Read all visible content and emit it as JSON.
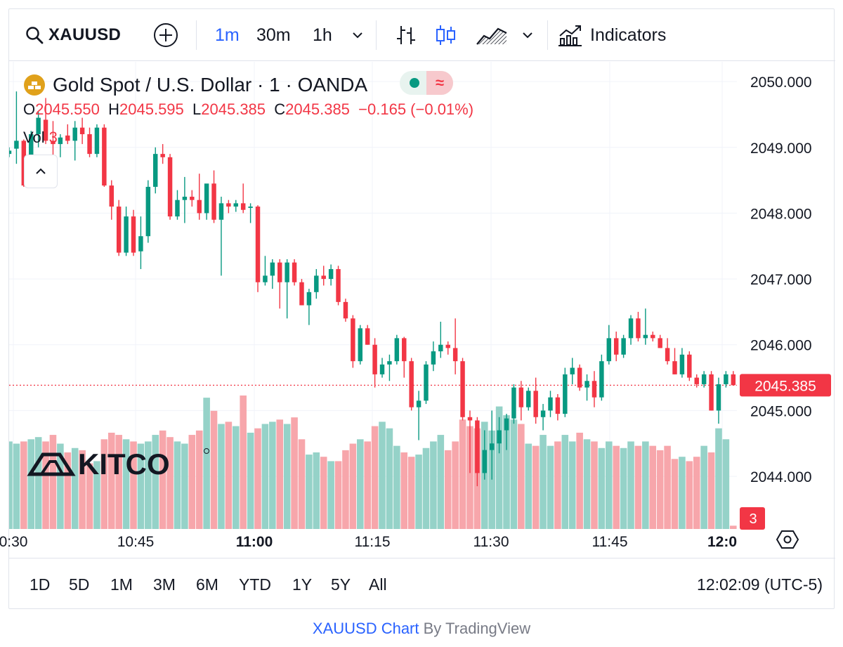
{
  "toolbar": {
    "symbol": "XAUUSD",
    "timeframes": [
      "1m",
      "30m",
      "1h"
    ],
    "active_timeframe": "1m",
    "indicators_label": "Indicators",
    "icons": [
      "search-icon",
      "add-symbol-icon",
      "chevron-down-icon",
      "bar-chart-icon",
      "candle-chart-icon",
      "area-chart-icon",
      "indicators-icon"
    ]
  },
  "legend": {
    "title": "Gold Spot / U.S. Dollar · 1 · OANDA",
    "o_label": "O",
    "o_value": "2045.550",
    "h_label": "H",
    "h_value": "2045.595",
    "l_label": "L",
    "l_value": "2045.385",
    "c_label": "C",
    "c_value": "2045.385",
    "change": "−0.165 (−0.01%)",
    "vol_label": "Vol",
    "vol_value": "3",
    "status_market": "≈"
  },
  "watermark": "KITCO",
  "chart_data": {
    "type": "candlestick",
    "symbol": "XAUUSD",
    "timeframe": "1m",
    "y_axis": {
      "ticks": [
        "2050.000",
        "2049.000",
        "2048.000",
        "2047.000",
        "2046.000",
        "2045.000",
        "2044.000"
      ],
      "ylim": [
        2043.2,
        2050.3
      ]
    },
    "x_axis": {
      "ticks": [
        {
          "label": "0:30",
          "bold": false
        },
        {
          "label": "10:45",
          "bold": false
        },
        {
          "label": "11:00",
          "bold": true
        },
        {
          "label": "11:15",
          "bold": false
        },
        {
          "label": "11:30",
          "bold": false
        },
        {
          "label": "11:45",
          "bold": false
        },
        {
          "label": "12:0",
          "bold": true
        }
      ]
    },
    "last_price": "2045.385",
    "last_volume": "3",
    "colors": {
      "up": "#089981",
      "down": "#f23645",
      "vol_up": "#95d2c8",
      "vol_down": "#f7a6ab",
      "grid": "#f0f3fa"
    },
    "grid": true,
    "candles": [
      {
        "o": 2048.9,
        "h": 2049.0,
        "l": 2048.85,
        "c": 2048.95,
        "v": 80
      },
      {
        "o": 2048.98,
        "h": 2049.85,
        "l": 2048.75,
        "c": 2049.1,
        "v": 78
      },
      {
        "o": 2049.1,
        "h": 2049.12,
        "l": 2048.4,
        "c": 2048.42,
        "v": 80
      },
      {
        "o": 2048.42,
        "h": 2049.25,
        "l": 2048.4,
        "c": 2049.2,
        "v": 82
      },
      {
        "o": 2049.2,
        "h": 2049.55,
        "l": 2049.0,
        "c": 2049.45,
        "v": 84
      },
      {
        "o": 2049.42,
        "h": 2049.75,
        "l": 2049.05,
        "c": 2049.1,
        "v": 80
      },
      {
        "o": 2049.1,
        "h": 2049.4,
        "l": 2048.7,
        "c": 2049.05,
        "v": 86
      },
      {
        "o": 2049.05,
        "h": 2049.2,
        "l": 2048.85,
        "c": 2049.15,
        "v": 78
      },
      {
        "o": 2049.18,
        "h": 2049.35,
        "l": 2049.05,
        "c": 2049.1,
        "v": 70
      },
      {
        "o": 2049.1,
        "h": 2049.4,
        "l": 2048.8,
        "c": 2049.3,
        "v": 74
      },
      {
        "o": 2049.3,
        "h": 2049.45,
        "l": 2049.05,
        "c": 2049.2,
        "v": 72
      },
      {
        "o": 2049.2,
        "h": 2049.3,
        "l": 2048.85,
        "c": 2048.9,
        "v": 60
      },
      {
        "o": 2048.9,
        "h": 2049.35,
        "l": 2048.85,
        "c": 2049.3,
        "v": 62
      },
      {
        "o": 2049.3,
        "h": 2049.35,
        "l": 2048.4,
        "c": 2048.42,
        "v": 82
      },
      {
        "o": 2048.42,
        "h": 2048.5,
        "l": 2047.9,
        "c": 2048.1,
        "v": 88
      },
      {
        "o": 2048.1,
        "h": 2048.2,
        "l": 2047.35,
        "c": 2047.4,
        "v": 86
      },
      {
        "o": 2047.4,
        "h": 2048.1,
        "l": 2047.35,
        "c": 2047.95,
        "v": 82
      },
      {
        "o": 2047.95,
        "h": 2048.05,
        "l": 2047.35,
        "c": 2047.4,
        "v": 80
      },
      {
        "o": 2047.42,
        "h": 2047.95,
        "l": 2047.15,
        "c": 2047.65,
        "v": 78
      },
      {
        "o": 2047.65,
        "h": 2048.5,
        "l": 2047.55,
        "c": 2048.4,
        "v": 80
      },
      {
        "o": 2048.4,
        "h": 2049.0,
        "l": 2048.3,
        "c": 2048.9,
        "v": 86
      },
      {
        "o": 2048.9,
        "h": 2049.05,
        "l": 2048.75,
        "c": 2048.85,
        "v": 90
      },
      {
        "o": 2048.85,
        "h": 2048.9,
        "l": 2047.9,
        "c": 2047.95,
        "v": 84
      },
      {
        "o": 2047.95,
        "h": 2048.35,
        "l": 2047.9,
        "c": 2048.2,
        "v": 80
      },
      {
        "o": 2048.2,
        "h": 2048.55,
        "l": 2047.85,
        "c": 2048.25,
        "v": 78
      },
      {
        "o": 2048.25,
        "h": 2048.35,
        "l": 2048.1,
        "c": 2048.2,
        "v": 86
      },
      {
        "o": 2048.2,
        "h": 2048.6,
        "l": 2047.9,
        "c": 2048.0,
        "v": 90
      },
      {
        "o": 2048.0,
        "h": 2048.4,
        "l": 2047.9,
        "c": 2048.45,
        "v": 120
      },
      {
        "o": 2048.45,
        "h": 2048.65,
        "l": 2047.85,
        "c": 2047.9,
        "v": 108
      },
      {
        "o": 2047.9,
        "h": 2048.25,
        "l": 2047.05,
        "c": 2048.15,
        "v": 96
      },
      {
        "o": 2048.15,
        "h": 2048.2,
        "l": 2048.0,
        "c": 2048.1,
        "v": 98
      },
      {
        "o": 2048.1,
        "h": 2048.2,
        "l": 2048.02,
        "c": 2048.15,
        "v": 94
      },
      {
        "o": 2048.15,
        "h": 2048.45,
        "l": 2048.0,
        "c": 2048.05,
        "v": 122
      },
      {
        "o": 2048.08,
        "h": 2048.15,
        "l": 2047.85,
        "c": 2048.1,
        "v": 88
      },
      {
        "o": 2048.1,
        "h": 2048.12,
        "l": 2046.8,
        "c": 2046.95,
        "v": 92
      },
      {
        "o": 2046.95,
        "h": 2047.35,
        "l": 2046.9,
        "c": 2047.05,
        "v": 96
      },
      {
        "o": 2047.05,
        "h": 2047.3,
        "l": 2046.85,
        "c": 2047.25,
        "v": 98
      },
      {
        "o": 2047.25,
        "h": 2047.3,
        "l": 2046.55,
        "c": 2046.95,
        "v": 100
      },
      {
        "o": 2046.95,
        "h": 2047.3,
        "l": 2046.4,
        "c": 2047.25,
        "v": 96
      },
      {
        "o": 2047.25,
        "h": 2047.3,
        "l": 2046.9,
        "c": 2046.95,
        "v": 102
      },
      {
        "o": 2046.95,
        "h": 2047.0,
        "l": 2046.6,
        "c": 2046.6,
        "v": 82
      },
      {
        "o": 2046.6,
        "h": 2046.85,
        "l": 2046.3,
        "c": 2046.8,
        "v": 68
      },
      {
        "o": 2046.8,
        "h": 2047.15,
        "l": 2046.7,
        "c": 2047.05,
        "v": 70
      },
      {
        "o": 2047.05,
        "h": 2047.2,
        "l": 2046.9,
        "c": 2047.0,
        "v": 66
      },
      {
        "o": 2047.0,
        "h": 2047.22,
        "l": 2046.9,
        "c": 2047.15,
        "v": 62
      },
      {
        "o": 2047.15,
        "h": 2047.2,
        "l": 2046.6,
        "c": 2046.65,
        "v": 62
      },
      {
        "o": 2046.65,
        "h": 2046.7,
        "l": 2046.35,
        "c": 2046.4,
        "v": 72
      },
      {
        "o": 2046.4,
        "h": 2046.45,
        "l": 2045.65,
        "c": 2045.75,
        "v": 78
      },
      {
        "o": 2045.75,
        "h": 2046.3,
        "l": 2045.7,
        "c": 2046.25,
        "v": 82
      },
      {
        "o": 2046.25,
        "h": 2046.3,
        "l": 2046.0,
        "c": 2046.0,
        "v": 80
      },
      {
        "o": 2046.0,
        "h": 2046.1,
        "l": 2045.35,
        "c": 2045.55,
        "v": 94
      },
      {
        "o": 2045.55,
        "h": 2045.8,
        "l": 2045.5,
        "c": 2045.7,
        "v": 98
      },
      {
        "o": 2045.7,
        "h": 2045.85,
        "l": 2045.45,
        "c": 2045.75,
        "v": 92
      },
      {
        "o": 2045.75,
        "h": 2046.15,
        "l": 2045.7,
        "c": 2046.1,
        "v": 76
      },
      {
        "o": 2046.1,
        "h": 2046.12,
        "l": 2045.5,
        "c": 2045.75,
        "v": 70
      },
      {
        "o": 2045.75,
        "h": 2045.8,
        "l": 2045.0,
        "c": 2045.05,
        "v": 66
      },
      {
        "o": 2045.05,
        "h": 2045.3,
        "l": 2044.55,
        "c": 2045.15,
        "v": 68
      },
      {
        "o": 2045.15,
        "h": 2045.75,
        "l": 2045.1,
        "c": 2045.7,
        "v": 74
      },
      {
        "o": 2045.7,
        "h": 2046.05,
        "l": 2045.6,
        "c": 2045.9,
        "v": 80
      },
      {
        "o": 2045.9,
        "h": 2046.35,
        "l": 2045.8,
        "c": 2046.0,
        "v": 86
      },
      {
        "o": 2046.0,
        "h": 2046.05,
        "l": 2045.85,
        "c": 2045.95,
        "v": 72
      },
      {
        "o": 2045.95,
        "h": 2046.4,
        "l": 2045.55,
        "c": 2045.75,
        "v": 80
      },
      {
        "o": 2045.75,
        "h": 2045.8,
        "l": 2044.85,
        "c": 2044.9,
        "v": 100
      },
      {
        "o": 2044.9,
        "h": 2045.0,
        "l": 2044.05,
        "c": 2044.85,
        "v": 94
      },
      {
        "o": 2044.85,
        "h": 2044.9,
        "l": 2043.85,
        "c": 2044.05,
        "v": 92
      },
      {
        "o": 2044.05,
        "h": 2044.7,
        "l": 2043.95,
        "c": 2044.4,
        "v": 98
      },
      {
        "o": 2044.4,
        "h": 2045.0,
        "l": 2043.95,
        "c": 2044.5,
        "v": 90
      },
      {
        "o": 2044.5,
        "h": 2044.9,
        "l": 2044.35,
        "c": 2044.7,
        "v": 112
      },
      {
        "o": 2044.7,
        "h": 2044.95,
        "l": 2044.4,
        "c": 2044.88,
        "v": 104
      },
      {
        "o": 2044.88,
        "h": 2045.4,
        "l": 2044.8,
        "c": 2045.35,
        "v": 100
      },
      {
        "o": 2045.35,
        "h": 2045.45,
        "l": 2044.85,
        "c": 2045.05,
        "v": 96
      },
      {
        "o": 2045.05,
        "h": 2045.35,
        "l": 2045.0,
        "c": 2045.3,
        "v": 78
      },
      {
        "o": 2045.3,
        "h": 2045.5,
        "l": 2044.8,
        "c": 2044.9,
        "v": 76
      },
      {
        "o": 2044.9,
        "h": 2045.1,
        "l": 2044.7,
        "c": 2045.0,
        "v": 86
      },
      {
        "o": 2045.0,
        "h": 2045.3,
        "l": 2044.9,
        "c": 2045.2,
        "v": 76
      },
      {
        "o": 2045.2,
        "h": 2045.25,
        "l": 2044.85,
        "c": 2044.95,
        "v": 80
      },
      {
        "o": 2044.95,
        "h": 2045.65,
        "l": 2044.9,
        "c": 2045.55,
        "v": 86
      },
      {
        "o": 2045.55,
        "h": 2045.8,
        "l": 2045.4,
        "c": 2045.65,
        "v": 80
      },
      {
        "o": 2045.65,
        "h": 2045.7,
        "l": 2045.3,
        "c": 2045.35,
        "v": 88
      },
      {
        "o": 2045.35,
        "h": 2045.55,
        "l": 2045.15,
        "c": 2045.45,
        "v": 82
      },
      {
        "o": 2045.45,
        "h": 2045.6,
        "l": 2045.05,
        "c": 2045.2,
        "v": 80
      },
      {
        "o": 2045.2,
        "h": 2045.85,
        "l": 2045.15,
        "c": 2045.75,
        "v": 74
      },
      {
        "o": 2045.75,
        "h": 2046.3,
        "l": 2045.7,
        "c": 2046.1,
        "v": 80
      },
      {
        "o": 2046.1,
        "h": 2046.2,
        "l": 2045.75,
        "c": 2045.85,
        "v": 76
      },
      {
        "o": 2045.85,
        "h": 2046.15,
        "l": 2045.8,
        "c": 2046.1,
        "v": 74
      },
      {
        "o": 2046.1,
        "h": 2046.45,
        "l": 2046.0,
        "c": 2046.4,
        "v": 80
      },
      {
        "o": 2046.4,
        "h": 2046.5,
        "l": 2046.05,
        "c": 2046.1,
        "v": 76
      },
      {
        "o": 2046.1,
        "h": 2046.55,
        "l": 2046.0,
        "c": 2046.15,
        "v": 80
      },
      {
        "o": 2046.15,
        "h": 2046.2,
        "l": 2046.05,
        "c": 2046.1,
        "v": 76
      },
      {
        "o": 2046.1,
        "h": 2046.15,
        "l": 2045.95,
        "c": 2045.95,
        "v": 72
      },
      {
        "o": 2045.95,
        "h": 2046.1,
        "l": 2045.7,
        "c": 2045.75,
        "v": 76
      },
      {
        "o": 2045.75,
        "h": 2045.95,
        "l": 2045.55,
        "c": 2045.55,
        "v": 64
      },
      {
        "o": 2045.55,
        "h": 2045.95,
        "l": 2045.5,
        "c": 2045.85,
        "v": 66
      },
      {
        "o": 2045.85,
        "h": 2045.9,
        "l": 2045.45,
        "c": 2045.5,
        "v": 62
      },
      {
        "o": 2045.5,
        "h": 2045.55,
        "l": 2045.35,
        "c": 2045.4,
        "v": 66
      },
      {
        "o": 2045.4,
        "h": 2045.6,
        "l": 2045.35,
        "c": 2045.55,
        "v": 76
      },
      {
        "o": 2045.55,
        "h": 2045.6,
        "l": 2045.0,
        "c": 2045.0,
        "v": 70
      },
      {
        "o": 2045.0,
        "h": 2045.5,
        "l": 2044.8,
        "c": 2045.4,
        "v": 92
      },
      {
        "o": 2045.4,
        "h": 2045.6,
        "l": 2045.35,
        "c": 2045.55,
        "v": 82
      },
      {
        "o": 2045.55,
        "h": 2045.6,
        "l": 2045.38,
        "c": 2045.385,
        "v": 3
      }
    ]
  },
  "bottombar": {
    "ranges": [
      "1D",
      "5D",
      "1M",
      "3M",
      "6M",
      "YTD",
      "1Y",
      "5Y",
      "All"
    ],
    "clock": "12:02:09 (UTC-5)"
  },
  "footer": {
    "link_text": "XAUUSD Chart",
    "by_text": "By TradingView"
  }
}
